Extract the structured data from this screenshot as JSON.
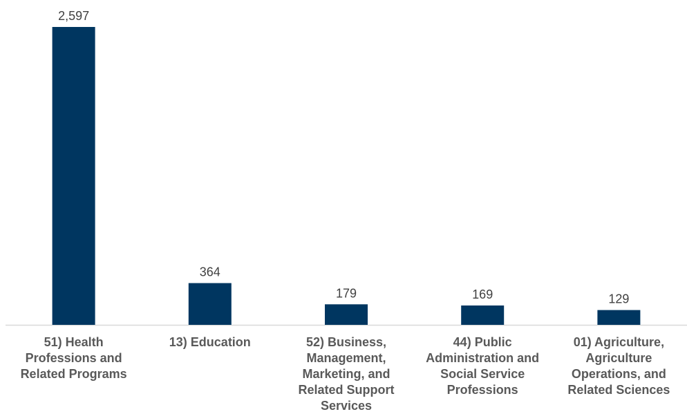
{
  "chart_data": {
    "type": "bar",
    "title": "",
    "xlabel": "",
    "ylabel": "",
    "categories": [
      "51) Health Professions and Related Programs",
      "13) Education",
      "52) Business, Management, Marketing, and Related Support Services",
      "44) Public Administration and Social Service Professions",
      "01) Agriculture, Agriculture Operations, and Related Sciences"
    ],
    "values": [
      2597,
      364,
      179,
      169,
      129
    ],
    "value_labels": [
      "2,597",
      "364",
      "179",
      "169",
      "129"
    ],
    "ylim": [
      0,
      2597
    ],
    "grid": false,
    "legend": "none",
    "colors": {
      "bar": "#003660",
      "axis": "#d9d9d9",
      "label": "#595959",
      "value_label": "#404040"
    }
  }
}
